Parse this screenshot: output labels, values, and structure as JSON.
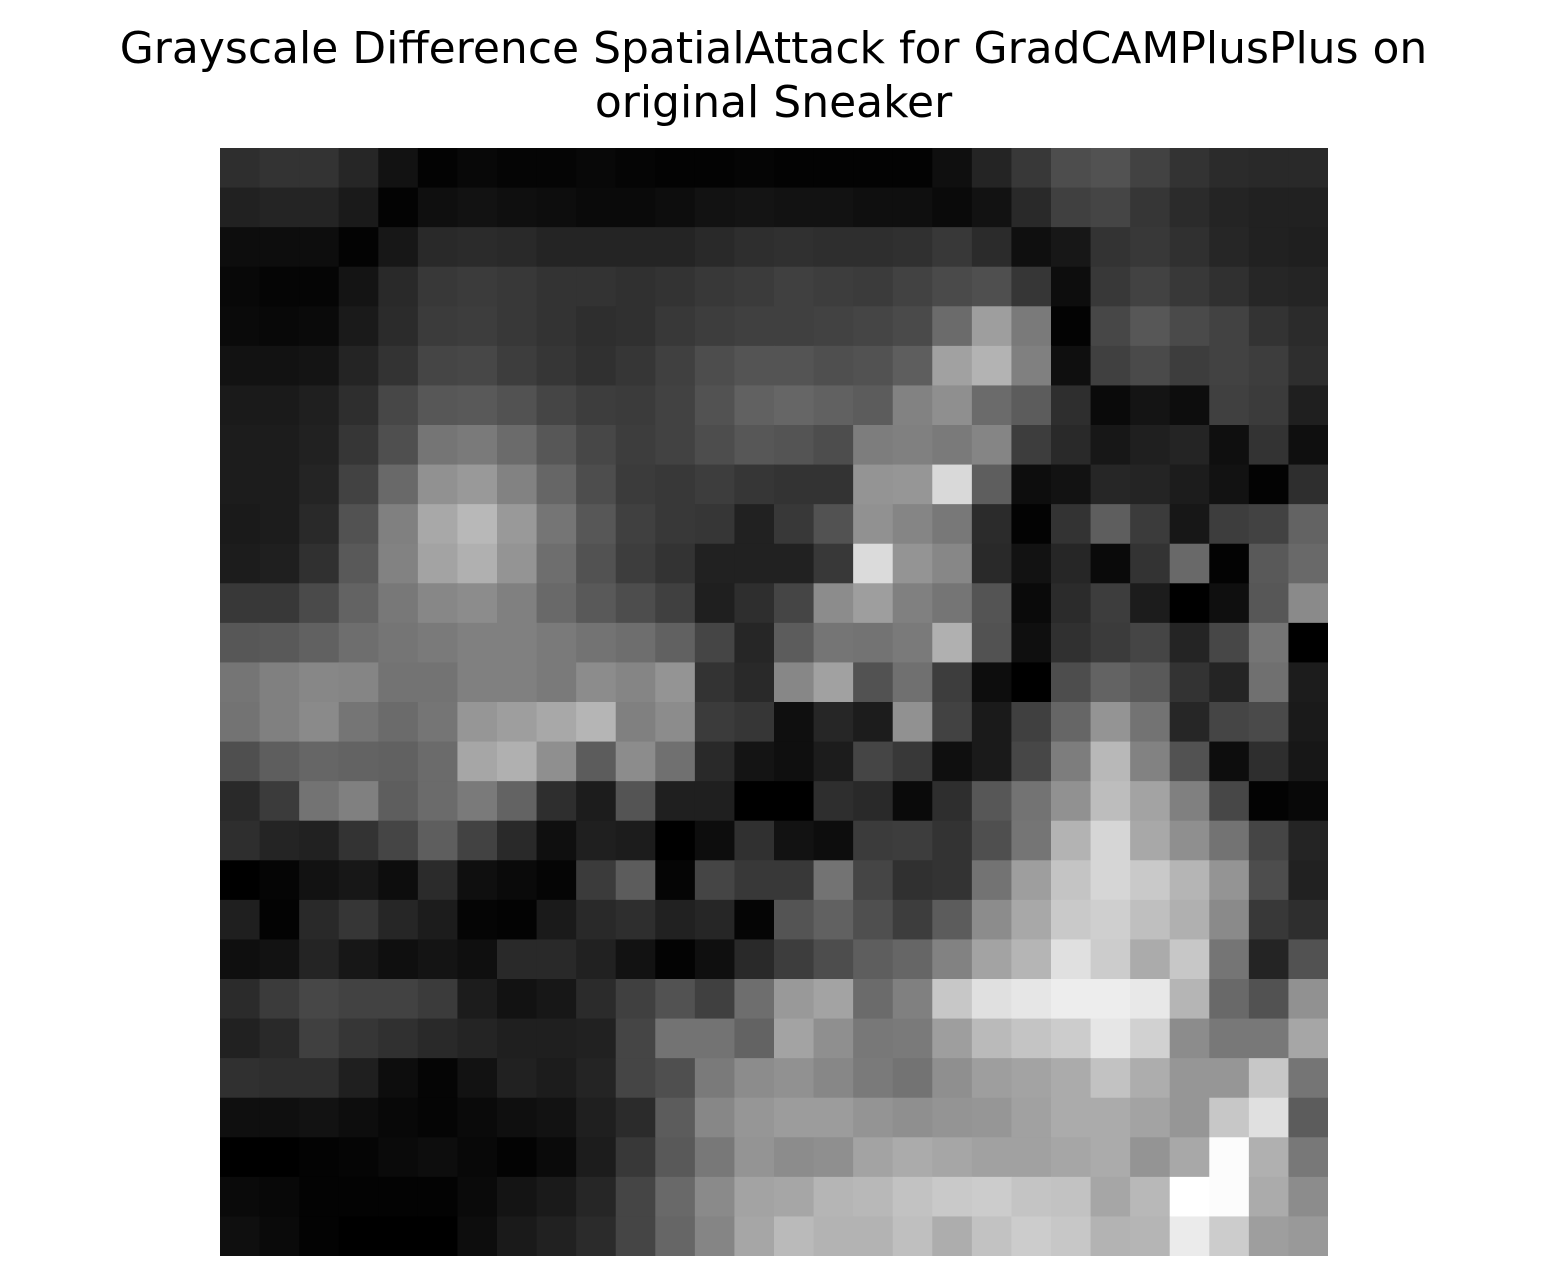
{
  "chart_data": {
    "type": "heatmap",
    "title_lines": [
      "Grayscale Difference SpatialAttack for GradCAMPlusPlus on",
      "original Sneaker"
    ],
    "colormap": "gray",
    "value_range": [
      0,
      1
    ],
    "axes_visible": false,
    "values": [
      [
        0.18,
        0.2,
        0.2,
        0.15,
        0.07,
        0.01,
        0.03,
        0.02,
        0.02,
        0.03,
        0.02,
        0.01,
        0.01,
        0.02,
        0.01,
        0.01,
        0.01,
        0.01,
        0.06,
        0.14,
        0.22,
        0.3,
        0.32,
        0.26,
        0.2,
        0.17,
        0.16,
        0.16
      ],
      [
        0.13,
        0.14,
        0.14,
        0.1,
        0.01,
        0.06,
        0.07,
        0.06,
        0.05,
        0.04,
        0.04,
        0.05,
        0.07,
        0.08,
        0.07,
        0.07,
        0.06,
        0.06,
        0.04,
        0.07,
        0.16,
        0.25,
        0.27,
        0.21,
        0.17,
        0.14,
        0.13,
        0.13
      ],
      [
        0.05,
        0.05,
        0.05,
        0.01,
        0.09,
        0.16,
        0.17,
        0.16,
        0.14,
        0.14,
        0.14,
        0.14,
        0.16,
        0.18,
        0.19,
        0.18,
        0.18,
        0.19,
        0.22,
        0.17,
        0.06,
        0.09,
        0.2,
        0.22,
        0.19,
        0.15,
        0.13,
        0.12
      ],
      [
        0.03,
        0.02,
        0.02,
        0.08,
        0.16,
        0.22,
        0.23,
        0.22,
        0.2,
        0.2,
        0.19,
        0.2,
        0.22,
        0.23,
        0.25,
        0.24,
        0.23,
        0.26,
        0.29,
        0.31,
        0.21,
        0.05,
        0.22,
        0.26,
        0.22,
        0.19,
        0.15,
        0.14
      ],
      [
        0.04,
        0.03,
        0.04,
        0.1,
        0.17,
        0.23,
        0.24,
        0.22,
        0.2,
        0.18,
        0.19,
        0.22,
        0.24,
        0.25,
        0.25,
        0.26,
        0.27,
        0.29,
        0.42,
        0.62,
        0.48,
        0.01,
        0.28,
        0.34,
        0.29,
        0.26,
        0.2,
        0.17
      ],
      [
        0.07,
        0.07,
        0.08,
        0.14,
        0.2,
        0.27,
        0.28,
        0.24,
        0.21,
        0.19,
        0.21,
        0.25,
        0.3,
        0.33,
        0.33,
        0.31,
        0.32,
        0.37,
        0.63,
        0.7,
        0.5,
        0.06,
        0.25,
        0.29,
        0.24,
        0.26,
        0.24,
        0.18
      ],
      [
        0.1,
        0.1,
        0.12,
        0.18,
        0.28,
        0.34,
        0.35,
        0.32,
        0.27,
        0.24,
        0.23,
        0.26,
        0.32,
        0.38,
        0.4,
        0.38,
        0.36,
        0.51,
        0.56,
        0.42,
        0.36,
        0.18,
        0.04,
        0.08,
        0.05,
        0.25,
        0.23,
        0.12
      ],
      [
        0.11,
        0.11,
        0.13,
        0.21,
        0.31,
        0.46,
        0.48,
        0.42,
        0.34,
        0.28,
        0.24,
        0.26,
        0.3,
        0.34,
        0.33,
        0.3,
        0.49,
        0.5,
        0.48,
        0.52,
        0.24,
        0.16,
        0.09,
        0.12,
        0.14,
        0.06,
        0.2,
        0.06
      ],
      [
        0.11,
        0.11,
        0.14,
        0.26,
        0.41,
        0.57,
        0.6,
        0.51,
        0.4,
        0.3,
        0.23,
        0.22,
        0.24,
        0.21,
        0.2,
        0.2,
        0.58,
        0.59,
        0.85,
        0.37,
        0.05,
        0.07,
        0.15,
        0.14,
        0.11,
        0.07,
        0.01,
        0.18
      ],
      [
        0.1,
        0.11,
        0.16,
        0.32,
        0.5,
        0.66,
        0.72,
        0.6,
        0.46,
        0.34,
        0.25,
        0.22,
        0.21,
        0.13,
        0.22,
        0.32,
        0.57,
        0.52,
        0.47,
        0.17,
        0.01,
        0.2,
        0.37,
        0.23,
        0.09,
        0.24,
        0.26,
        0.39
      ],
      [
        0.11,
        0.12,
        0.19,
        0.35,
        0.51,
        0.64,
        0.69,
        0.58,
        0.43,
        0.32,
        0.24,
        0.2,
        0.13,
        0.13,
        0.13,
        0.22,
        0.86,
        0.58,
        0.53,
        0.16,
        0.07,
        0.15,
        0.04,
        0.2,
        0.41,
        0.01,
        0.35,
        0.41
      ],
      [
        0.22,
        0.22,
        0.29,
        0.39,
        0.47,
        0.53,
        0.55,
        0.5,
        0.41,
        0.35,
        0.3,
        0.25,
        0.12,
        0.18,
        0.27,
        0.55,
        0.62,
        0.5,
        0.46,
        0.33,
        0.04,
        0.17,
        0.24,
        0.11,
        0.0,
        0.06,
        0.34,
        0.54
      ],
      [
        0.34,
        0.35,
        0.38,
        0.43,
        0.46,
        0.48,
        0.5,
        0.5,
        0.48,
        0.45,
        0.43,
        0.38,
        0.27,
        0.15,
        0.36,
        0.46,
        0.45,
        0.48,
        0.69,
        0.32,
        0.06,
        0.19,
        0.23,
        0.27,
        0.14,
        0.28,
        0.46,
        0.0
      ],
      [
        0.46,
        0.5,
        0.53,
        0.52,
        0.45,
        0.45,
        0.5,
        0.5,
        0.48,
        0.55,
        0.52,
        0.58,
        0.2,
        0.16,
        0.53,
        0.63,
        0.32,
        0.44,
        0.24,
        0.05,
        0.0,
        0.3,
        0.39,
        0.35,
        0.2,
        0.14,
        0.44,
        0.11
      ],
      [
        0.45,
        0.5,
        0.54,
        0.46,
        0.42,
        0.46,
        0.59,
        0.62,
        0.66,
        0.71,
        0.5,
        0.55,
        0.23,
        0.21,
        0.06,
        0.15,
        0.11,
        0.57,
        0.26,
        0.1,
        0.25,
        0.4,
        0.58,
        0.45,
        0.15,
        0.27,
        0.29,
        0.1
      ],
      [
        0.31,
        0.37,
        0.4,
        0.39,
        0.38,
        0.42,
        0.65,
        0.69,
        0.56,
        0.36,
        0.55,
        0.44,
        0.16,
        0.08,
        0.06,
        0.11,
        0.27,
        0.22,
        0.06,
        0.1,
        0.28,
        0.49,
        0.72,
        0.51,
        0.32,
        0.05,
        0.18,
        0.09
      ],
      [
        0.16,
        0.23,
        0.45,
        0.5,
        0.37,
        0.42,
        0.48,
        0.39,
        0.18,
        0.11,
        0.33,
        0.12,
        0.12,
        0.0,
        0.0,
        0.18,
        0.16,
        0.04,
        0.18,
        0.34,
        0.45,
        0.57,
        0.74,
        0.64,
        0.5,
        0.28,
        0.01,
        0.03
      ],
      [
        0.18,
        0.14,
        0.13,
        0.2,
        0.27,
        0.37,
        0.26,
        0.16,
        0.06,
        0.12,
        0.11,
        0.0,
        0.05,
        0.19,
        0.07,
        0.05,
        0.23,
        0.24,
        0.2,
        0.31,
        0.46,
        0.7,
        0.84,
        0.66,
        0.56,
        0.45,
        0.27,
        0.14
      ],
      [
        0.0,
        0.02,
        0.07,
        0.09,
        0.05,
        0.17,
        0.06,
        0.04,
        0.02,
        0.23,
        0.36,
        0.02,
        0.27,
        0.22,
        0.22,
        0.45,
        0.27,
        0.19,
        0.2,
        0.45,
        0.62,
        0.77,
        0.84,
        0.79,
        0.71,
        0.58,
        0.3,
        0.13
      ],
      [
        0.12,
        0.01,
        0.16,
        0.21,
        0.15,
        0.11,
        0.02,
        0.01,
        0.1,
        0.16,
        0.18,
        0.13,
        0.15,
        0.02,
        0.33,
        0.38,
        0.31,
        0.24,
        0.36,
        0.55,
        0.66,
        0.79,
        0.81,
        0.75,
        0.69,
        0.54,
        0.22,
        0.18
      ],
      [
        0.06,
        0.07,
        0.14,
        0.09,
        0.06,
        0.08,
        0.06,
        0.16,
        0.16,
        0.13,
        0.07,
        0.01,
        0.06,
        0.16,
        0.24,
        0.3,
        0.37,
        0.4,
        0.51,
        0.64,
        0.71,
        0.88,
        0.8,
        0.67,
        0.78,
        0.46,
        0.14,
        0.32
      ],
      [
        0.17,
        0.23,
        0.28,
        0.26,
        0.26,
        0.23,
        0.11,
        0.07,
        0.09,
        0.17,
        0.25,
        0.32,
        0.25,
        0.43,
        0.6,
        0.64,
        0.42,
        0.5,
        0.78,
        0.88,
        0.9,
        0.93,
        0.93,
        0.91,
        0.71,
        0.41,
        0.32,
        0.57
      ],
      [
        0.13,
        0.16,
        0.25,
        0.21,
        0.19,
        0.16,
        0.14,
        0.12,
        0.12,
        0.13,
        0.27,
        0.45,
        0.45,
        0.39,
        0.64,
        0.56,
        0.47,
        0.48,
        0.62,
        0.73,
        0.77,
        0.8,
        0.9,
        0.82,
        0.55,
        0.47,
        0.47,
        0.65
      ],
      [
        0.19,
        0.18,
        0.18,
        0.12,
        0.05,
        0.02,
        0.07,
        0.13,
        0.11,
        0.14,
        0.27,
        0.31,
        0.48,
        0.55,
        0.57,
        0.53,
        0.48,
        0.45,
        0.56,
        0.62,
        0.64,
        0.67,
        0.76,
        0.68,
        0.59,
        0.59,
        0.78,
        0.46
      ],
      [
        0.06,
        0.06,
        0.07,
        0.05,
        0.03,
        0.02,
        0.04,
        0.06,
        0.07,
        0.12,
        0.17,
        0.36,
        0.53,
        0.59,
        0.61,
        0.61,
        0.58,
        0.56,
        0.58,
        0.59,
        0.63,
        0.67,
        0.67,
        0.64,
        0.59,
        0.78,
        0.88,
        0.36
      ],
      [
        0.0,
        0.0,
        0.01,
        0.02,
        0.04,
        0.05,
        0.03,
        0.01,
        0.04,
        0.11,
        0.22,
        0.35,
        0.47,
        0.58,
        0.55,
        0.56,
        0.64,
        0.67,
        0.65,
        0.63,
        0.63,
        0.65,
        0.67,
        0.58,
        0.66,
        0.99,
        0.69,
        0.47
      ],
      [
        0.04,
        0.03,
        0.01,
        0.01,
        0.01,
        0.01,
        0.04,
        0.08,
        0.1,
        0.15,
        0.27,
        0.41,
        0.54,
        0.64,
        0.65,
        0.71,
        0.72,
        0.76,
        0.79,
        0.8,
        0.77,
        0.76,
        0.65,
        0.72,
        1.0,
        0.99,
        0.67,
        0.55
      ],
      [
        0.06,
        0.04,
        0.01,
        0.0,
        0.0,
        0.0,
        0.05,
        0.1,
        0.13,
        0.17,
        0.27,
        0.4,
        0.52,
        0.65,
        0.73,
        0.7,
        0.7,
        0.75,
        0.68,
        0.76,
        0.8,
        0.78,
        0.7,
        0.71,
        0.92,
        0.8,
        0.62,
        0.6
      ]
    ]
  }
}
